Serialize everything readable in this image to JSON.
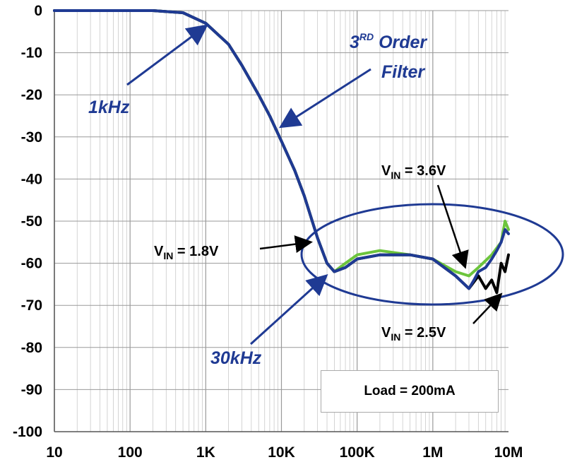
{
  "chart_data": {
    "type": "line",
    "x_scale": "log",
    "xlim": [
      10,
      10000000
    ],
    "ylim": [
      -100,
      0
    ],
    "x_tick_labels": [
      "10",
      "100",
      "1K",
      "10K",
      "100K",
      "1M",
      "10M"
    ],
    "x_tick_values": [
      10,
      100,
      1000,
      10000,
      100000,
      1000000,
      10000000
    ],
    "y_tick_labels": [
      "0",
      "-10",
      "-20",
      "-30",
      "-40",
      "-50",
      "-60",
      "-70",
      "-80",
      "-90",
      "-100"
    ],
    "y_tick_values": [
      0,
      -10,
      -20,
      -30,
      -40,
      -50,
      -60,
      -70,
      -80,
      -90,
      -100
    ],
    "grid": true,
    "series": [
      {
        "color": "#6cc43c",
        "points": [
          [
            10,
            0
          ],
          [
            200,
            0
          ],
          [
            500,
            -0.5
          ],
          [
            1000,
            -3
          ],
          [
            2000,
            -8
          ],
          [
            3000,
            -13
          ],
          [
            5000,
            -20
          ],
          [
            7000,
            -25
          ],
          [
            10000,
            -31
          ],
          [
            15000,
            -38
          ],
          [
            20000,
            -44
          ],
          [
            30000,
            -54
          ],
          [
            40000,
            -60
          ],
          [
            50000,
            -62
          ],
          [
            70000,
            -60
          ],
          [
            100000,
            -58
          ],
          [
            200000,
            -57
          ],
          [
            500000,
            -58
          ],
          [
            1000000,
            -59
          ],
          [
            2000000,
            -62
          ],
          [
            3000000,
            -63
          ],
          [
            4000000,
            -61
          ],
          [
            6000000,
            -58
          ],
          [
            8000000,
            -55
          ],
          [
            9000000,
            -50
          ],
          [
            10000000,
            -52
          ]
        ]
      },
      {
        "color": "#000000",
        "points": [
          [
            10,
            0
          ],
          [
            200,
            0
          ],
          [
            500,
            -0.5
          ],
          [
            1000,
            -3
          ],
          [
            2000,
            -8
          ],
          [
            3000,
            -13
          ],
          [
            5000,
            -20
          ],
          [
            7000,
            -25
          ],
          [
            10000,
            -31
          ],
          [
            15000,
            -38
          ],
          [
            20000,
            -44
          ],
          [
            30000,
            -54
          ],
          [
            40000,
            -60
          ],
          [
            50000,
            -62
          ],
          [
            70000,
            -61
          ],
          [
            100000,
            -59
          ],
          [
            200000,
            -58
          ],
          [
            500000,
            -58
          ],
          [
            1000000,
            -59
          ],
          [
            2000000,
            -63
          ],
          [
            3000000,
            -66
          ],
          [
            4000000,
            -63
          ],
          [
            5000000,
            -66
          ],
          [
            6000000,
            -64
          ],
          [
            7000000,
            -67
          ],
          [
            8000000,
            -60
          ],
          [
            9000000,
            -62
          ],
          [
            10000000,
            -58
          ]
        ]
      },
      {
        "color": "#1f3a93",
        "points": [
          [
            10,
            0
          ],
          [
            200,
            0
          ],
          [
            500,
            -0.5
          ],
          [
            1000,
            -3
          ],
          [
            2000,
            -8
          ],
          [
            3000,
            -13
          ],
          [
            5000,
            -20
          ],
          [
            7000,
            -25
          ],
          [
            10000,
            -31
          ],
          [
            15000,
            -38
          ],
          [
            20000,
            -44
          ],
          [
            30000,
            -54
          ],
          [
            40000,
            -60
          ],
          [
            50000,
            -62
          ],
          [
            70000,
            -61
          ],
          [
            100000,
            -59
          ],
          [
            200000,
            -58
          ],
          [
            500000,
            -58
          ],
          [
            1000000,
            -59
          ],
          [
            2000000,
            -63
          ],
          [
            3000000,
            -66
          ],
          [
            3500000,
            -64
          ],
          [
            4000000,
            -62
          ],
          [
            5000000,
            -61
          ],
          [
            6000000,
            -59
          ],
          [
            7000000,
            -57
          ],
          [
            8000000,
            -55
          ],
          [
            9000000,
            -52
          ],
          [
            10000000,
            -53
          ]
        ]
      }
    ],
    "annotations": {
      "label_1khz": "1kHz",
      "label_filter_prefix": "3",
      "label_filter_sup": "RD",
      "label_filter_order": " Order",
      "label_filter_line2": "Filter",
      "label_30khz": "30kHz",
      "vin_v": "V",
      "vin_sub": "IN",
      "vin_18": " = 1.8V",
      "vin_36": " = 3.6V",
      "vin_25": " = 2.5V",
      "load": "Load = 200mA"
    }
  }
}
